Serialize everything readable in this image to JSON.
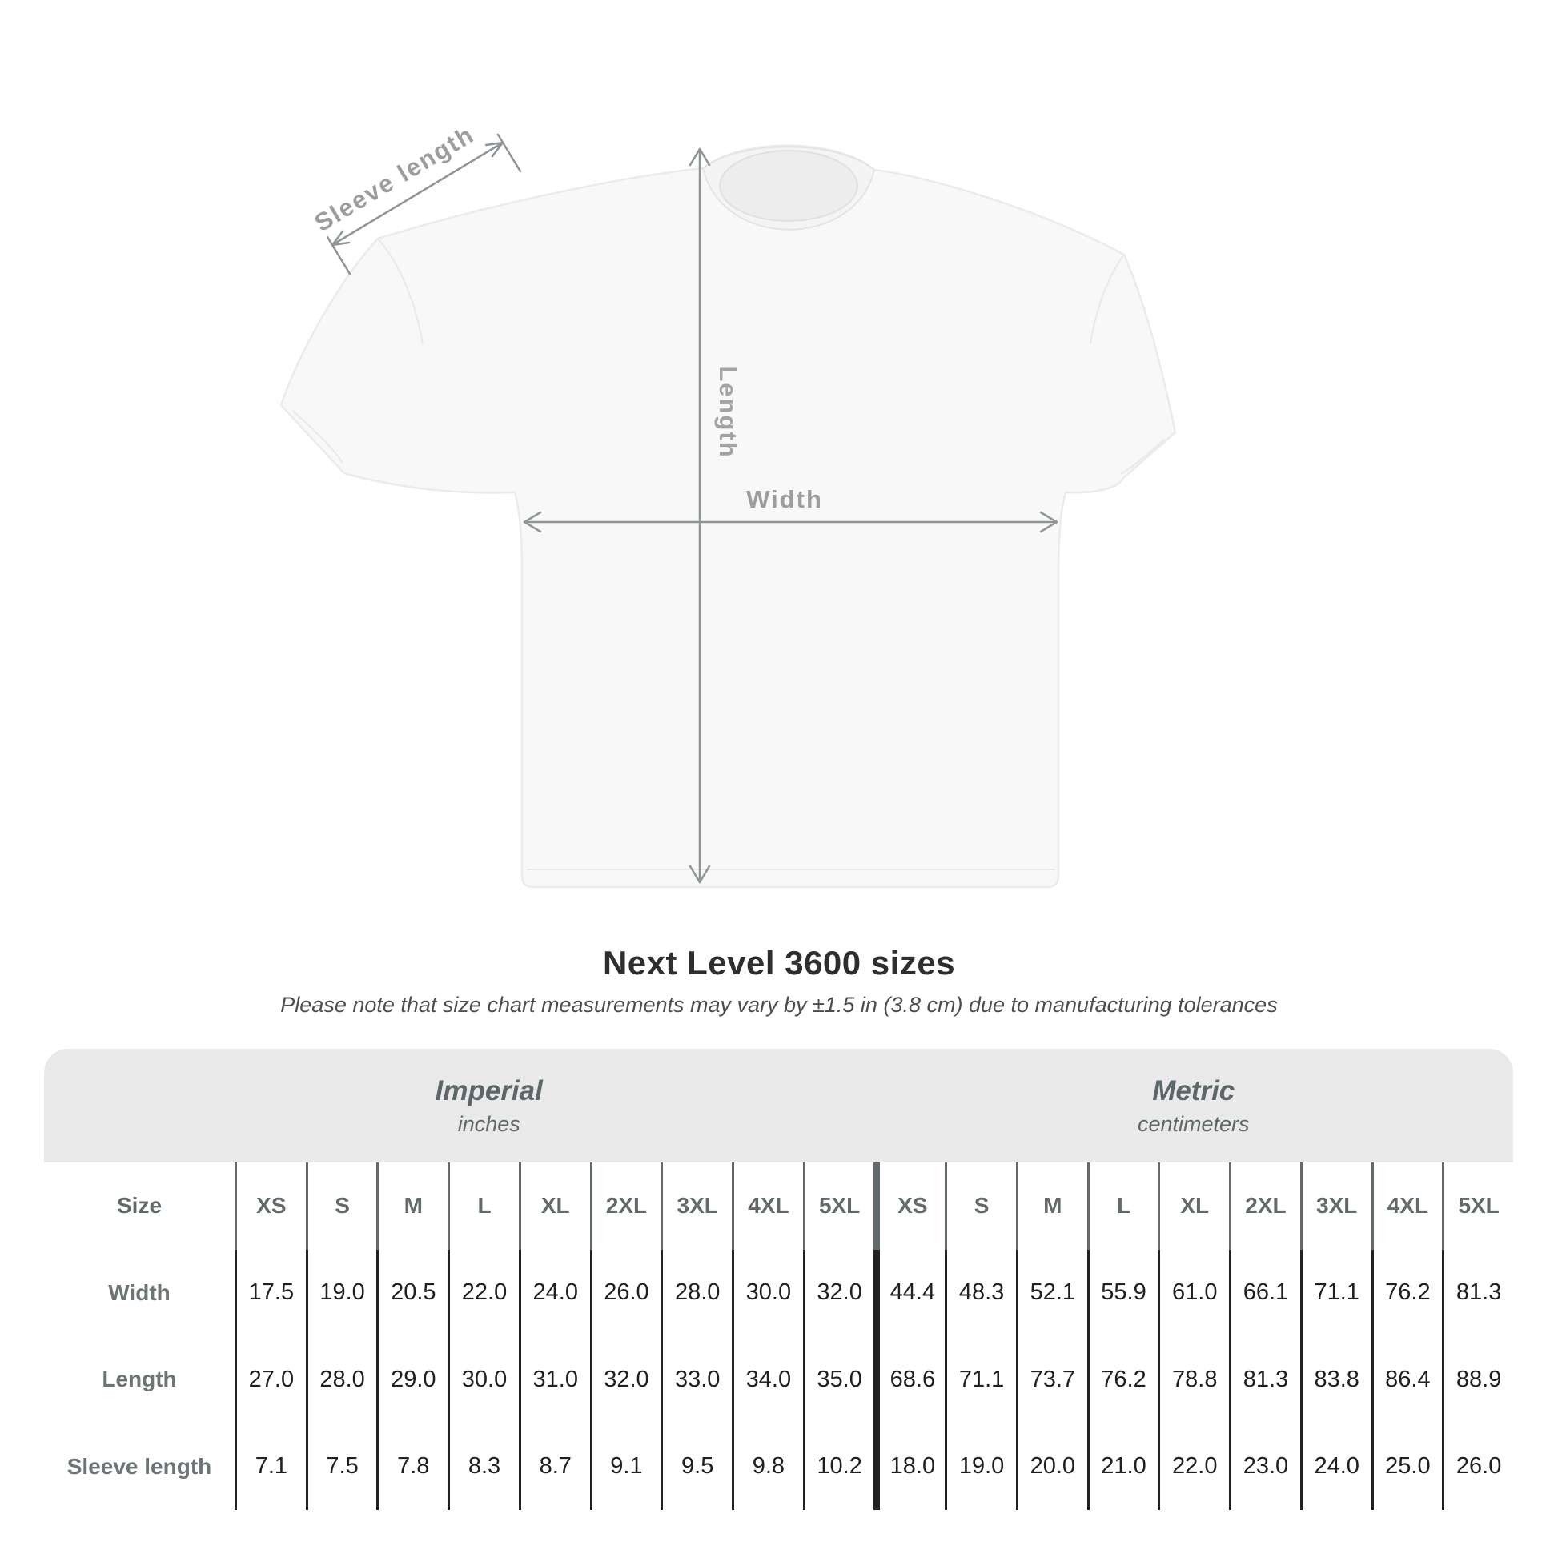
{
  "illustration": {
    "sleeve_label": "Sleeve length",
    "length_label": "Length",
    "width_label": "Width",
    "arrow_color": "#8f9496",
    "label_color": "#9d9d9d",
    "shirt_fill": "#f8f8f8"
  },
  "heading": {
    "title": "Next Level 3600 sizes",
    "subtitle": "Please note that size chart measurements may vary by ±1.5 in (3.8 cm) due to manufacturing tolerances"
  },
  "table": {
    "size_header": "Size",
    "sizes": [
      "XS",
      "S",
      "M",
      "L",
      "XL",
      "2XL",
      "3XL",
      "4XL",
      "5XL"
    ],
    "unit_groups": [
      {
        "label": "Imperial",
        "unit": "inches"
      },
      {
        "label": "Metric",
        "unit": "centimeters"
      }
    ],
    "rows": [
      {
        "label": "Width",
        "values": [
          "17.5",
          "19.0",
          "20.5",
          "22.0",
          "24.0",
          "26.0",
          "28.0",
          "30.0",
          "32.0",
          "44.4",
          "48.3",
          "52.1",
          "55.9",
          "61.0",
          "66.1",
          "71.1",
          "76.2",
          "81.3"
        ]
      },
      {
        "label": "Length",
        "values": [
          "27.0",
          "28.0",
          "29.0",
          "30.0",
          "31.0",
          "32.0",
          "33.0",
          "34.0",
          "35.0",
          "68.6",
          "71.1",
          "73.7",
          "76.2",
          "78.8",
          "81.3",
          "83.8",
          "86.4",
          "88.9"
        ]
      },
      {
        "label": "Sleeve length",
        "values": [
          "7.1",
          "7.5",
          "7.8",
          "8.3",
          "8.7",
          "9.1",
          "9.5",
          "9.8",
          "10.2",
          "18.0",
          "19.0",
          "20.0",
          "21.0",
          "22.0",
          "23.0",
          "24.0",
          "25.0",
          "26.0"
        ]
      }
    ],
    "band_color": "#e9e9e9",
    "header_text_color": "#626a6c",
    "row_label_color": "#6c7476",
    "value_text_color": "#202020"
  },
  "chart_data": {
    "type": "table",
    "title": "Next Level 3600 sizes",
    "note": "Please note that size chart measurements may vary by ±1.5 in (3.8 cm) due to manufacturing tolerances",
    "units": {
      "imperial": "inches",
      "metric": "centimeters"
    },
    "sizes": [
      "XS",
      "S",
      "M",
      "L",
      "XL",
      "2XL",
      "3XL",
      "4XL",
      "5XL"
    ],
    "measurements": [
      {
        "label": "Width",
        "imperial": [
          17.5,
          19.0,
          20.5,
          22.0,
          24.0,
          26.0,
          28.0,
          30.0,
          32.0
        ],
        "metric": [
          44.4,
          48.3,
          52.1,
          55.9,
          61.0,
          66.1,
          71.1,
          76.2,
          81.3
        ]
      },
      {
        "label": "Length",
        "imperial": [
          27.0,
          28.0,
          29.0,
          30.0,
          31.0,
          32.0,
          33.0,
          34.0,
          35.0
        ],
        "metric": [
          68.6,
          71.1,
          73.7,
          76.2,
          78.8,
          81.3,
          83.8,
          86.4,
          88.9
        ]
      },
      {
        "label": "Sleeve length",
        "imperial": [
          7.1,
          7.5,
          7.8,
          8.3,
          8.7,
          9.1,
          9.5,
          9.8,
          10.2
        ],
        "metric": [
          18.0,
          19.0,
          20.0,
          21.0,
          22.0,
          23.0,
          24.0,
          25.0,
          26.0
        ]
      }
    ]
  }
}
